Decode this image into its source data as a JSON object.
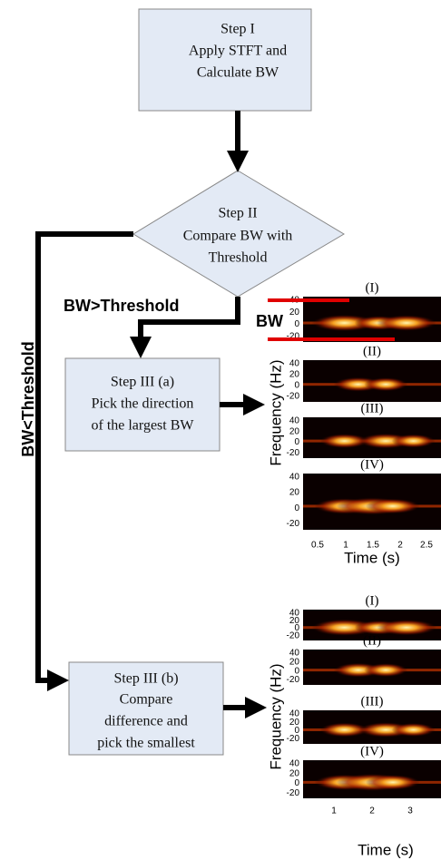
{
  "nodes": [
    {
      "lines": [
        "Step I",
        "Apply STFT and",
        "Calculate BW"
      ]
    },
    {
      "lines": [
        "Step II",
        "Compare BW with",
        "Threshold"
      ]
    },
    {
      "lines": [
        "Step III (a)",
        "Pick the direction",
        "of the largest BW"
      ]
    },
    {
      "lines": [
        "Step III (b)",
        "Compare",
        "difference and",
        "pick the smallest"
      ]
    }
  ],
  "edges": [
    {
      "label": "BW>Threshold"
    },
    {
      "label": "BW<Threshold"
    }
  ],
  "annotation": "BW",
  "spectrograms": [
    {
      "panels": [
        "(I)",
        "(II)",
        "(III)",
        "(IV)"
      ],
      "yticks": [
        "40",
        "20",
        "0",
        "-20"
      ],
      "xticks": [
        "0.5",
        "1",
        "1.5",
        "2",
        "2.5"
      ],
      "y_label": "Frequency (Hz)",
      "x_label": "Time (s)"
    },
    {
      "panels": [
        "(I)",
        "(II)",
        "(III)",
        "(IV)"
      ],
      "yticks": [
        "40",
        "20",
        "0",
        "-20"
      ],
      "xticks": [
        "1",
        "2",
        "3"
      ],
      "y_label": "Frequency (Hz)",
      "x_label": "Time (s)"
    }
  ]
}
